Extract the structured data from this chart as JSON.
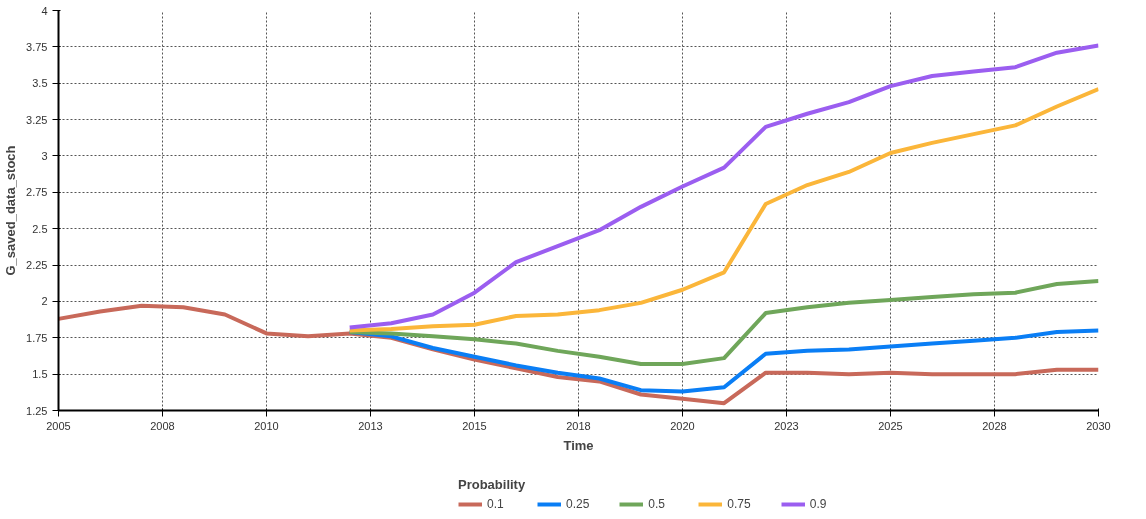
{
  "chart_data": {
    "type": "line",
    "xlabel": "Time",
    "ylabel": "G_saved_data_stoch",
    "legend_title": "Probability",
    "legend": "bottom",
    "grid": true,
    "line_style": "solid",
    "marker": "none",
    "x": [
      2005,
      2006,
      2007,
      2008,
      2009,
      2010,
      2011,
      2012,
      2013,
      2014,
      2015,
      2016,
      2017,
      2018,
      2019,
      2020,
      2021,
      2022,
      2023,
      2024,
      2025,
      2026,
      2027,
      2028,
      2029,
      2030
    ],
    "xlim": [
      2005,
      2030
    ],
    "ylim": [
      1.25,
      4
    ],
    "xticks": [
      2005,
      {
        "value": 2007.5,
        "label": "2008"
      },
      2010,
      {
        "value": 2012.5,
        "label": "2013"
      },
      2015,
      {
        "value": 2017.5,
        "label": "2018"
      },
      2020,
      {
        "value": 2022.5,
        "label": "2023"
      },
      2025,
      {
        "value": 2027.5,
        "label": "2028"
      },
      2030
    ],
    "yticks": [
      1.25,
      1.5,
      1.75,
      2,
      2.25,
      2.5,
      2.75,
      3,
      3.25,
      3.5,
      3.75,
      4
    ],
    "series": [
      {
        "name": "0.1",
        "color": "#c8695a",
        "values": [
          1.88,
          1.93,
          1.97,
          1.96,
          1.91,
          1.78,
          1.76,
          1.78,
          1.75,
          1.67,
          1.6,
          1.54,
          1.48,
          1.45,
          1.36,
          1.33,
          1.3,
          1.51,
          1.51,
          1.5,
          1.51,
          1.5,
          1.5,
          1.5,
          1.53,
          1.53
        ]
      },
      {
        "name": "0.25",
        "color": "#0a7ef5",
        "values": [
          null,
          null,
          null,
          null,
          null,
          null,
          null,
          1.79,
          1.76,
          1.68,
          1.62,
          1.56,
          1.51,
          1.47,
          1.39,
          1.38,
          1.41,
          1.64,
          1.66,
          1.67,
          1.69,
          1.71,
          1.73,
          1.75,
          1.79,
          1.8
        ]
      },
      {
        "name": "0.5",
        "color": "#6fa65a",
        "values": [
          null,
          null,
          null,
          null,
          null,
          null,
          null,
          1.79,
          1.78,
          1.76,
          1.74,
          1.71,
          1.66,
          1.62,
          1.57,
          1.57,
          1.61,
          1.92,
          1.96,
          1.99,
          2.01,
          2.03,
          2.05,
          2.06,
          2.12,
          2.14
        ]
      },
      {
        "name": "0.75",
        "color": "#fbb63a",
        "values": [
          null,
          null,
          null,
          null,
          null,
          null,
          null,
          1.8,
          1.81,
          1.83,
          1.84,
          1.9,
          1.91,
          1.94,
          1.99,
          2.08,
          2.2,
          2.67,
          2.8,
          2.89,
          3.02,
          3.09,
          3.15,
          3.21,
          3.34,
          3.46
        ]
      },
      {
        "name": "0.9",
        "color": "#9b5ef0",
        "values": [
          null,
          null,
          null,
          null,
          null,
          null,
          null,
          1.82,
          1.85,
          1.91,
          2.06,
          2.27,
          2.38,
          2.49,
          2.65,
          2.79,
          2.92,
          3.2,
          3.29,
          3.37,
          3.48,
          3.55,
          3.58,
          3.61,
          3.71,
          3.76
        ]
      }
    ]
  }
}
